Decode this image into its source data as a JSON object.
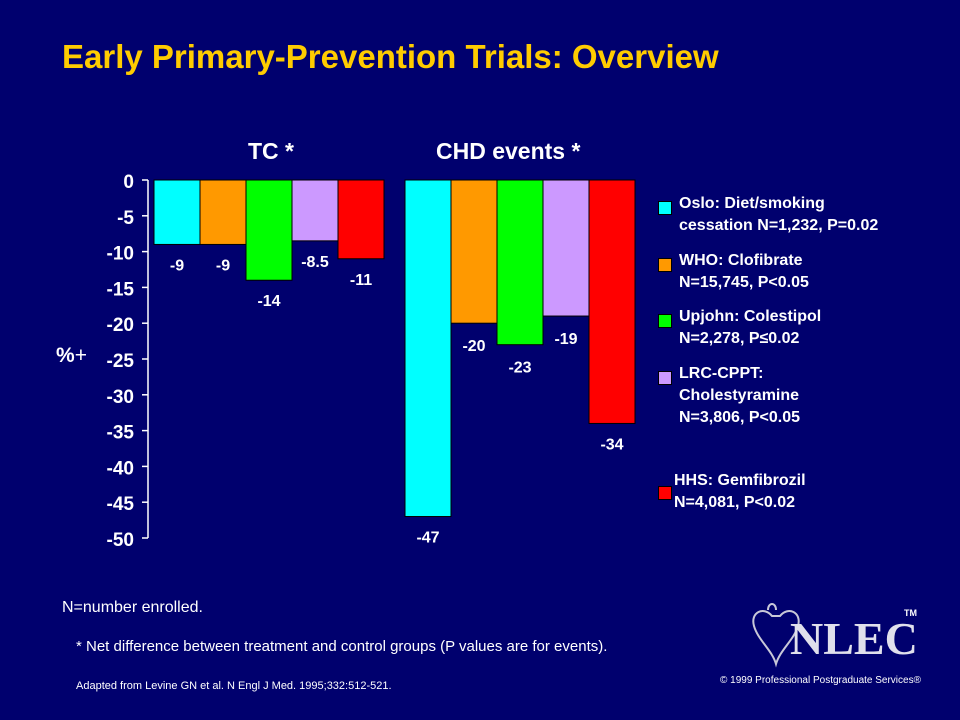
{
  "title": "Early Primary-Prevention Trials: Overview",
  "ylabel": "%",
  "ylabel_symbol": "+",
  "chart_data": {
    "type": "bar",
    "groups": [
      "TC *",
      "CHD events *"
    ],
    "yticks": [
      "0",
      "-5",
      "-10",
      "-15",
      "-20",
      "-25",
      "-30",
      "-35",
      "-40",
      "-45",
      "-50"
    ],
    "ylim": [
      -50,
      0
    ],
    "series": [
      {
        "name": "Oslo: Diet/smoking cessation N=1,232, P=0.02",
        "color": "#00ffff",
        "values": [
          -9,
          -47
        ],
        "labels": [
          "-9",
          "-47"
        ]
      },
      {
        "name": "WHO: Clofibrate N=15,745, P<0.05",
        "color": "#ff9900",
        "values": [
          -9,
          -20
        ],
        "labels": [
          "-9",
          "-20"
        ]
      },
      {
        "name": "Upjohn: Colestipol N=2,278, P≤0.02",
        "color": "#00ff00",
        "values": [
          -14,
          -23
        ],
        "labels": [
          "-14",
          "-23"
        ]
      },
      {
        "name": "LRC-CPPT: Cholestyramine N=3,806, P<0.05",
        "color": "#cc99ff",
        "values": [
          -8.5,
          -19
        ],
        "labels": [
          "-8.5",
          "-19"
        ]
      },
      {
        "name": "HHS: Gemfibrozil N=4,081, P<0.02",
        "color": "#ff0000",
        "values": [
          -11,
          -34
        ],
        "labels": [
          "-11",
          "-34"
        ]
      }
    ]
  },
  "legend": [
    {
      "text": "Oslo: Diet/smoking\ncessation N=1,232, P=0.02",
      "color": "#00ffff"
    },
    {
      "text": "WHO: Clofibrate\nN=15,745, P<0.05",
      "color": "#ff9900"
    },
    {
      "text": "Upjohn: Colestipol\nN=2,278, P≤0.02",
      "color": "#00ff00"
    },
    {
      "text": "LRC-CPPT:\nCholestyramine\nN=3,806, P<0.05",
      "color": "#cc99ff"
    },
    {
      "text": "HHS: Gemfibrozil\nN=4,081, P<0.02",
      "color": "#ff0000"
    }
  ],
  "footnotes": {
    "enrolled": "N=number enrolled.",
    "net_difference": "* Net difference between treatment and control groups (P values are for events).",
    "source": "Adapted from Levine GN et al. N Engl J Med. 1995;332:512-521."
  },
  "logo_text": "NLEC",
  "logo_tm": "TM",
  "copyright": "© 1999 Professional Postgraduate Services®",
  "colors": {
    "background": "#00006e",
    "title": "#ffcc00",
    "text": "#ffffff"
  }
}
